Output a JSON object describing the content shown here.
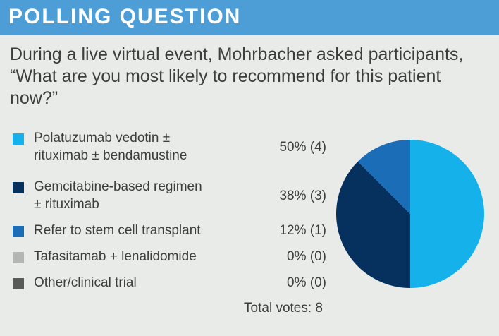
{
  "header": {
    "title": "POLLING QUESTION"
  },
  "question": "During a live virtual event, Mohrbacher asked participants, “What are you most likely to recommend for this patient now?”",
  "options": [
    {
      "label_lines": [
        "Polatuzumab vedotin ±",
        "rituximab ± bendamustine"
      ],
      "pct_text": "50% (4)",
      "color": "#14b1ea"
    },
    {
      "label_lines": [
        "Gemcitabine-based regimen",
        "± rituximab"
      ],
      "pct_text": "38% (3)",
      "color": "#06315f"
    },
    {
      "label_lines": [
        "Refer to stem cell transplant"
      ],
      "pct_text": "12% (1)",
      "color": "#1a6db6"
    },
    {
      "label_lines": [
        "Tafasitamab + lenalidomide"
      ],
      "pct_text": "0% (0)",
      "color": "#b5b5b5"
    },
    {
      "label_lines": [
        "Other/clinical trial"
      ],
      "pct_text": "0% (0)",
      "color": "#5a5a5a"
    }
  ],
  "total_text": "Total votes: 8",
  "chart_data": {
    "type": "pie",
    "title": "",
    "total_votes": 8,
    "slices": [
      {
        "label": "Polatuzumab vedotin ± rituximab ± bendamustine",
        "value": 4,
        "percent": 50,
        "color": "#14b1ea"
      },
      {
        "label": "Gemcitabine-based regimen ± rituximab",
        "value": 3,
        "percent": 38,
        "color": "#06315f"
      },
      {
        "label": "Refer to stem cell transplant",
        "value": 1,
        "percent": 12,
        "color": "#1a6db6"
      },
      {
        "label": "Tafasitamab + lenalidomide",
        "value": 0,
        "percent": 0,
        "color": "#b5b5b5"
      },
      {
        "label": "Other/clinical trial",
        "value": 0,
        "percent": 0,
        "color": "#5a5a5a"
      }
    ]
  }
}
